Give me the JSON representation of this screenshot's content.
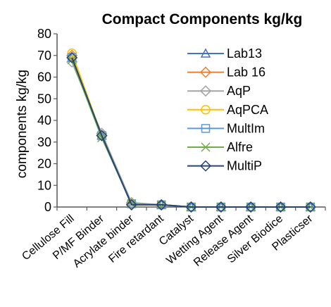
{
  "chart_data": {
    "type": "line",
    "title": "Compact Components kg/kg",
    "xlabel": "",
    "ylabel": "components kg/kg",
    "ylim": [
      0,
      80
    ],
    "yticks": [
      0,
      10,
      20,
      30,
      40,
      50,
      60,
      70,
      80
    ],
    "categories": [
      "Cellulose Fill",
      "P/MF Binder",
      "Acrylate binder",
      "Fire retardant",
      "Catalyst",
      "Wetting Agent",
      "Release Agent",
      "Silver Biodice",
      "Plasticser"
    ],
    "grid": false,
    "legend_position": "top-right",
    "series": [
      {
        "name": "Lab13",
        "color": "#4472C4",
        "marker": "triangle",
        "values": [
          69,
          33,
          1.5,
          1,
          0,
          0,
          0,
          0,
          0
        ]
      },
      {
        "name": "Lab 16",
        "color": "#ED7D31",
        "marker": "diamond",
        "values": [
          70,
          33,
          1.5,
          1,
          0,
          0,
          0,
          0,
          0
        ]
      },
      {
        "name": "AqP",
        "color": "#A5A5A5",
        "marker": "diamond",
        "values": [
          67,
          34,
          2,
          1,
          0,
          0,
          0,
          0,
          0
        ]
      },
      {
        "name": "AqPCA",
        "color": "#FFC000",
        "marker": "circle",
        "values": [
          71,
          33,
          1.5,
          1,
          0,
          0,
          0,
          0,
          0
        ]
      },
      {
        "name": "MultIm",
        "color": "#5B9BD5",
        "marker": "square",
        "values": [
          69,
          33,
          1.5,
          1,
          0,
          0,
          0,
          0,
          0
        ]
      },
      {
        "name": "Alfre",
        "color": "#70AD47",
        "marker": "x",
        "values": [
          68,
          32,
          1.5,
          1,
          0,
          0,
          0,
          0,
          0
        ]
      },
      {
        "name": "MultiP",
        "color": "#264478",
        "marker": "diamond",
        "values": [
          69,
          33,
          1,
          1,
          0,
          0,
          0,
          0,
          0
        ]
      }
    ]
  }
}
